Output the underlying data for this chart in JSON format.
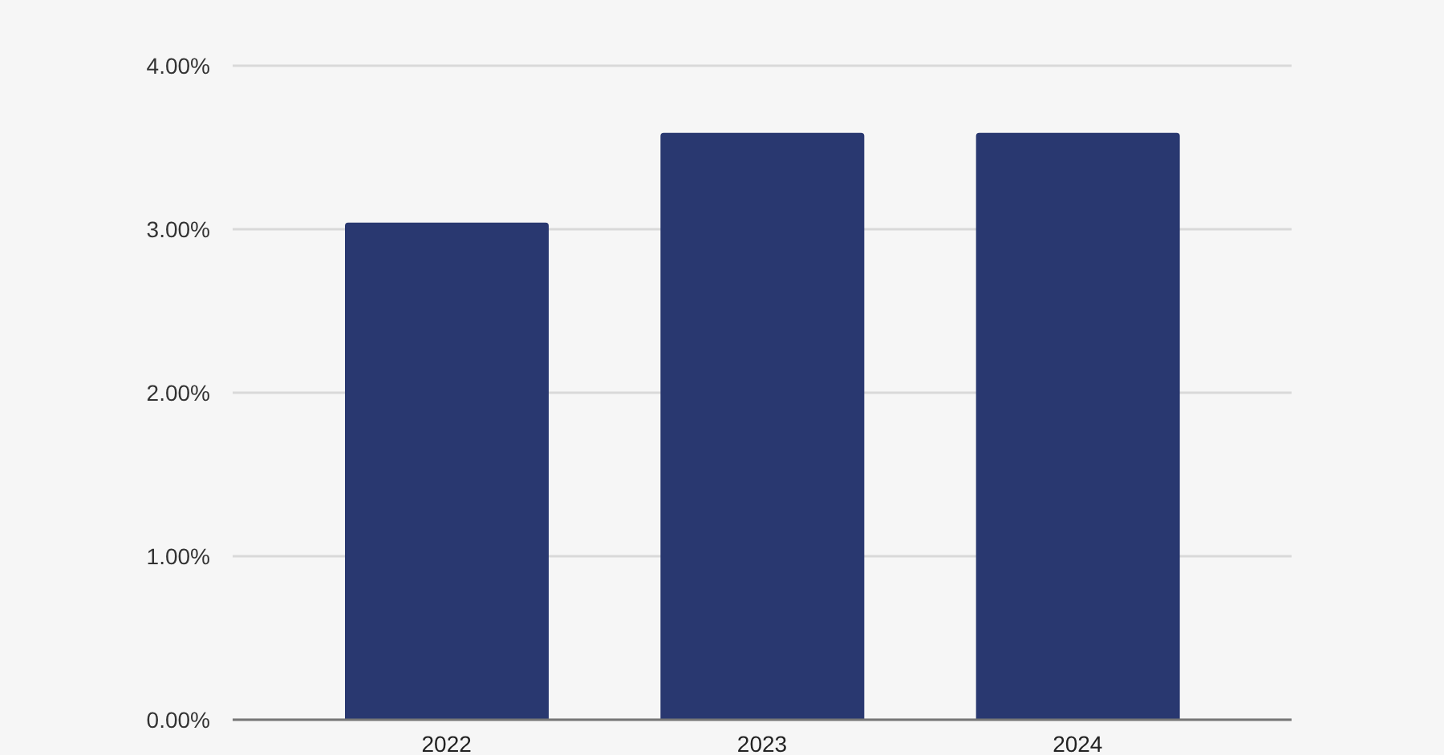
{
  "chart_data": {
    "type": "bar",
    "categories": [
      "2022",
      "2023",
      "2024"
    ],
    "values": [
      3.04,
      3.59,
      3.59
    ],
    "color": "#293870",
    "ylim": [
      0,
      4
    ],
    "yticks": [
      {
        "value": 0,
        "label": "0.00%"
      },
      {
        "value": 1,
        "label": "1.00%"
      },
      {
        "value": 2,
        "label": "2.00%"
      },
      {
        "value": 3,
        "label": "3.00%"
      },
      {
        "value": 4,
        "label": "4.00%"
      }
    ],
    "grid": "y"
  }
}
